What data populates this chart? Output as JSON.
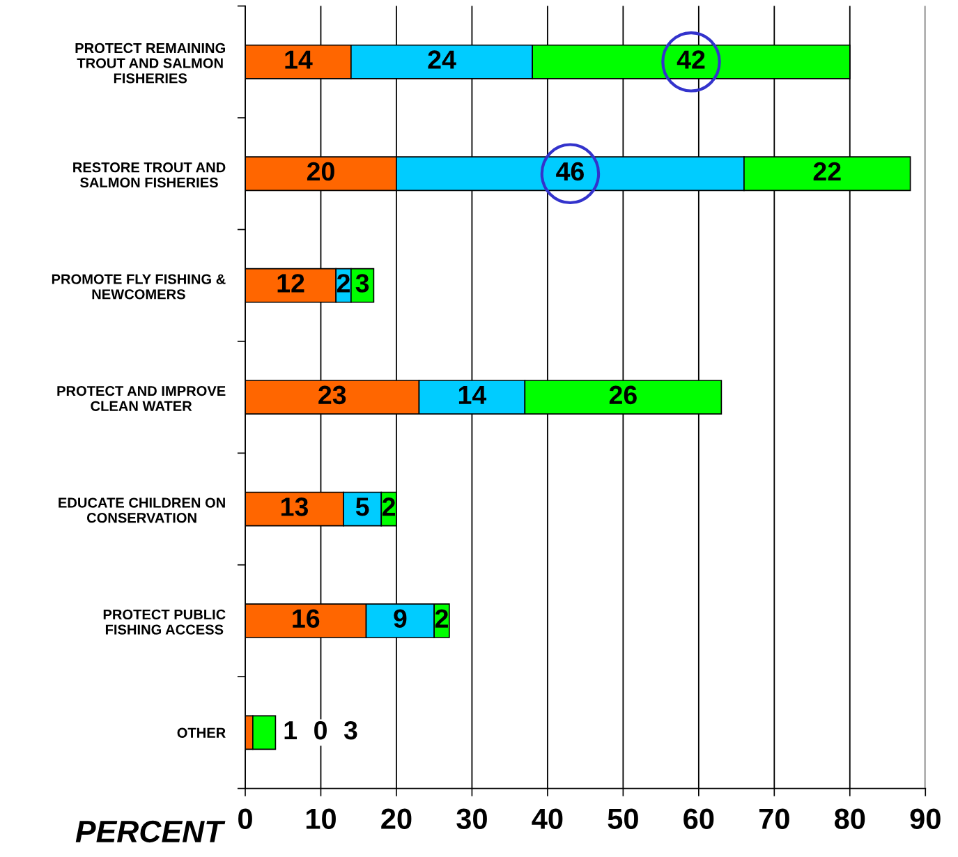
{
  "chart_data": {
    "type": "bar",
    "orientation": "horizontal",
    "stacked": true,
    "xlabel": "PERCENT",
    "categories": [
      "PROTECT REMAINING\nTROUT AND SALMON\nFISHERIES",
      "RESTORE TROUT AND\nSALMON FISHERIES",
      "PROMOTE FLY FISHING &\nNEWCOMERS",
      "PROTECT AND IMPROVE\nCLEAN WATER",
      "EDUCATE CHILDREN ON\nCONSERVATION",
      "PROTECT PUBLIC\nFISHING ACCESS",
      "OTHER"
    ],
    "series": [
      {
        "color": "#ff6600",
        "values": [
          14,
          20,
          12,
          23,
          13,
          16,
          1
        ]
      },
      {
        "color": "#00ccff",
        "values": [
          24,
          46,
          2,
          14,
          5,
          9,
          0
        ]
      },
      {
        "color": "#00ff00",
        "values": [
          42,
          22,
          3,
          26,
          2,
          2,
          3
        ]
      }
    ],
    "xlim": [
      0,
      90
    ],
    "xticks": [
      0,
      10,
      20,
      30,
      40,
      50,
      60,
      70,
      80,
      90
    ],
    "grid": "x",
    "data_labels": true,
    "legend": false
  }
}
